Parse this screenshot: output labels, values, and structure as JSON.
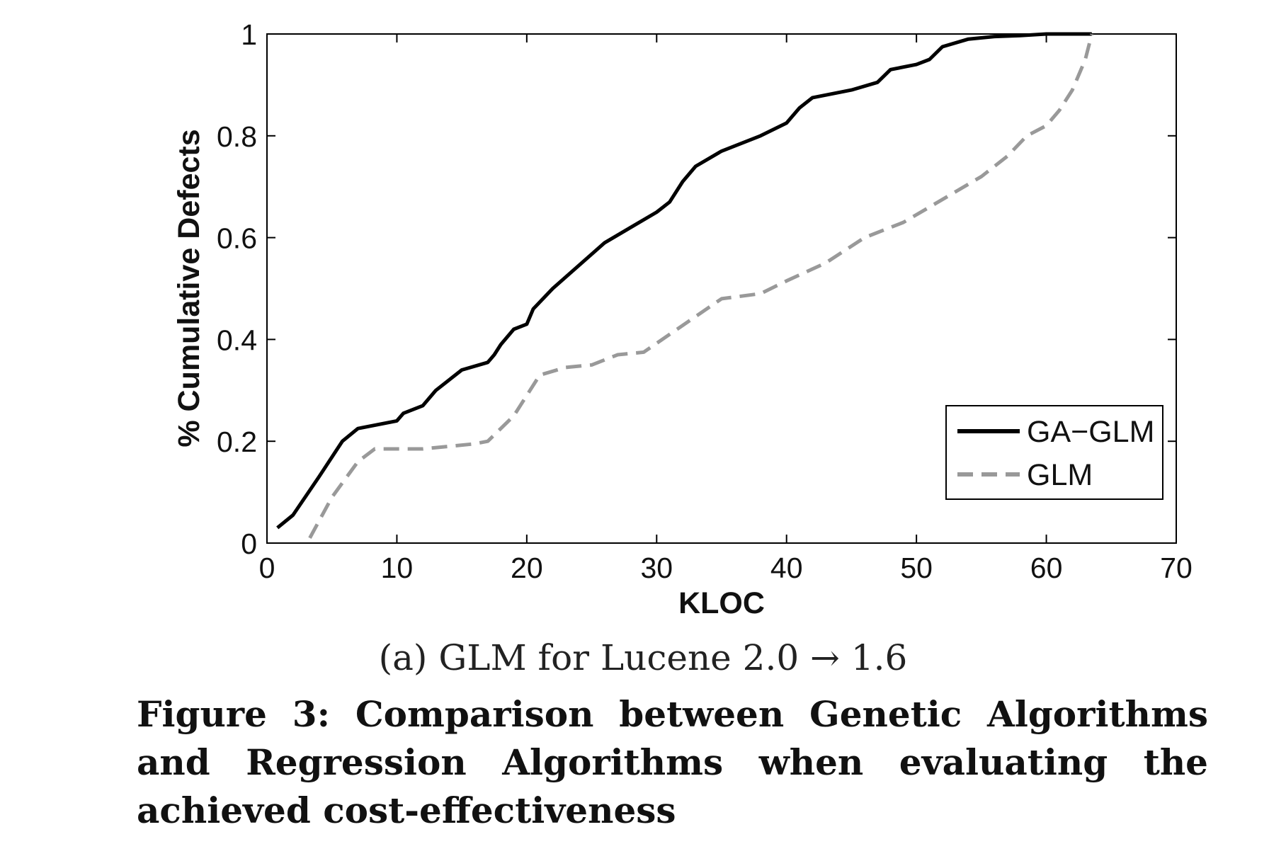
{
  "chart_data": {
    "type": "line",
    "xlabel": "KLOC",
    "ylabel": "% Cumulative Defects",
    "xlim": [
      0,
      70
    ],
    "ylim": [
      0,
      1
    ],
    "xticks": [
      0,
      10,
      20,
      30,
      40,
      50,
      60,
      70
    ],
    "yticks": [
      0,
      0.2,
      0.4,
      0.6,
      0.8,
      1
    ],
    "ytick_labels": [
      "0",
      "0.2",
      "0.4",
      "0.6",
      "0.8",
      "1"
    ],
    "grid": false,
    "legend": "inside-lower-right",
    "series": [
      {
        "name": "GA−GLM",
        "style": "solid",
        "color": "#000000",
        "x": [
          0.8,
          2,
          4,
          5.8,
          7,
          10,
          10.5,
          12,
          13,
          15,
          17,
          17.5,
          18,
          19,
          20,
          20.5,
          22,
          24,
          26,
          28,
          30,
          31,
          32,
          33,
          35,
          38,
          40,
          41,
          42,
          45,
          47,
          48,
          50,
          51,
          52,
          54,
          56,
          58,
          60,
          62,
          63.5
        ],
        "y": [
          0.03,
          0.055,
          0.13,
          0.2,
          0.225,
          0.24,
          0.255,
          0.27,
          0.3,
          0.34,
          0.355,
          0.37,
          0.39,
          0.42,
          0.43,
          0.46,
          0.5,
          0.545,
          0.59,
          0.62,
          0.65,
          0.67,
          0.71,
          0.74,
          0.77,
          0.8,
          0.825,
          0.855,
          0.875,
          0.89,
          0.905,
          0.93,
          0.94,
          0.95,
          0.975,
          0.99,
          0.995,
          0.997,
          1.0,
          1.0,
          1.0
        ]
      },
      {
        "name": "GLM",
        "style": "dashed",
        "color": "#999999",
        "x": [
          3.3,
          5,
          7,
          8.3,
          10,
          12,
          14,
          16,
          17,
          19,
          21,
          23,
          25,
          27,
          29,
          31,
          33,
          35,
          38,
          40,
          43,
          46,
          49,
          51,
          53,
          55,
          57,
          58.5,
          60,
          61,
          62,
          63,
          63.5
        ],
        "y": [
          0.01,
          0.09,
          0.16,
          0.185,
          0.185,
          0.185,
          0.19,
          0.195,
          0.2,
          0.25,
          0.33,
          0.345,
          0.35,
          0.37,
          0.375,
          0.41,
          0.445,
          0.48,
          0.49,
          0.515,
          0.55,
          0.6,
          0.63,
          0.66,
          0.69,
          0.72,
          0.76,
          0.8,
          0.82,
          0.85,
          0.89,
          0.95,
          1.0
        ]
      }
    ]
  },
  "subcaption": "(a) GLM for Lucene 2.0 → 1.6",
  "figure_caption": "Figure 3: Comparison between Genetic Algorithms and Regression Algorithms when evaluating the achieved cost-effectiveness"
}
